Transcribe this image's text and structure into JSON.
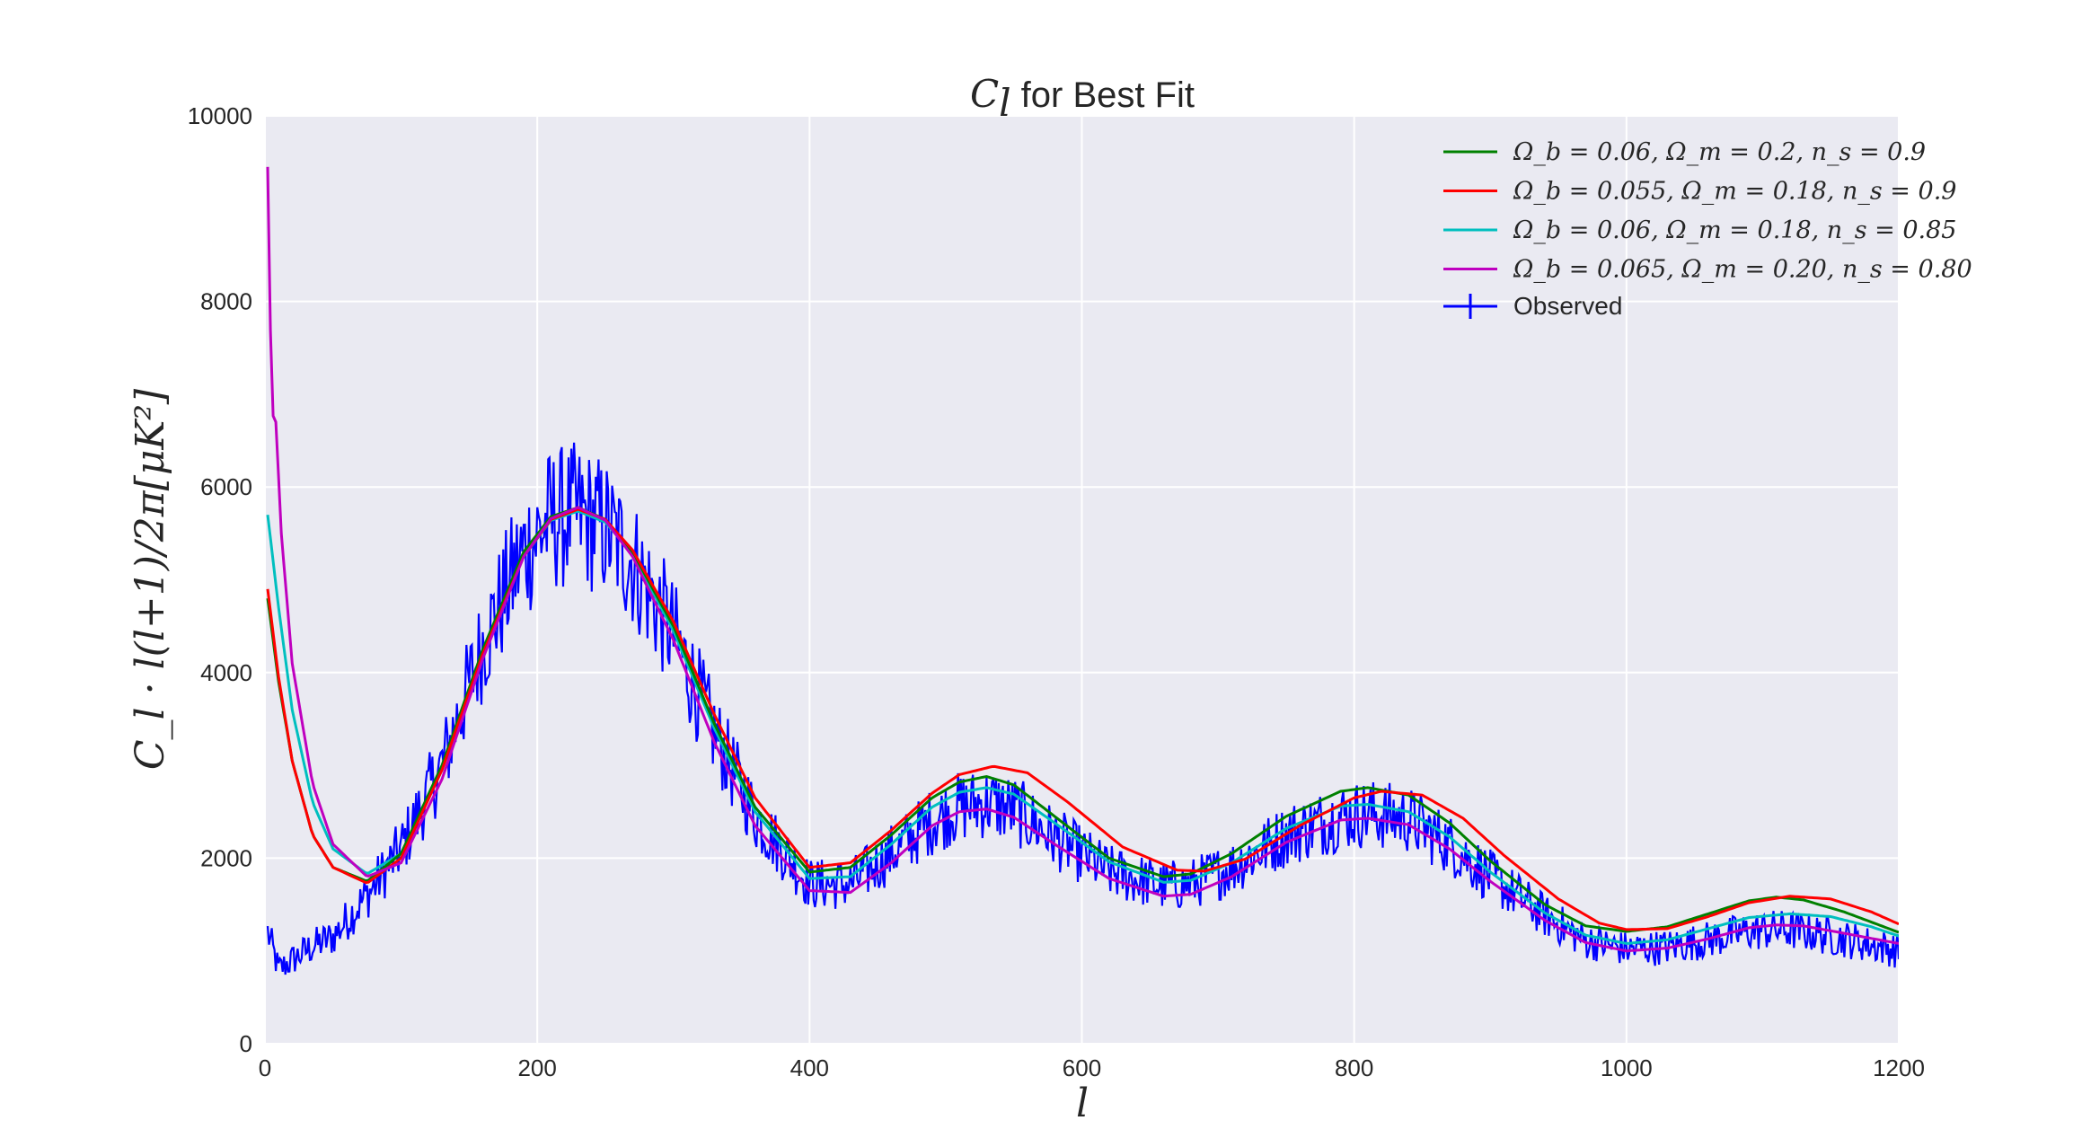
{
  "chart_data": {
    "type": "line",
    "title": {
      "symbol": "C",
      "symbol_sub": "l",
      "text": " for Best Fit"
    },
    "xlabel": "l",
    "ylabel": "C_l · l(l+1)/2π[μK²]",
    "xlim": [
      0,
      1200
    ],
    "ylim": [
      0,
      10000
    ],
    "xticks": [
      "0",
      "200",
      "400",
      "600",
      "800",
      "1000",
      "1200"
    ],
    "yticks": [
      "0",
      "2000",
      "4000",
      "6000",
      "8000",
      "10000"
    ],
    "grid": true,
    "legend_position": "top-right",
    "background": "#eaeaf2",
    "colors": {
      "green": "#008000",
      "red": "#ff0000",
      "cyan": "#00bfbf",
      "magenta": "#bf00bf",
      "blue": "#0000ff"
    },
    "series": [
      {
        "name": "Ω_b = 0.06, Ω_m = 0.2, n_s = 0.9",
        "color": "#008000",
        "x": [
          2,
          10,
          20,
          35,
          50,
          75,
          100,
          130,
          160,
          190,
          210,
          230,
          250,
          270,
          300,
          330,
          360,
          400,
          430,
          460,
          490,
          510,
          530,
          550,
          580,
          620,
          660,
          680,
          710,
          750,
          790,
          810,
          840,
          870,
          900,
          940,
          970,
          1000,
          1030,
          1060,
          1090,
          1110,
          1130,
          1160,
          1200
        ],
        "y": [
          4800,
          3900,
          3050,
          2250,
          1900,
          1750,
          2050,
          3000,
          4250,
          5300,
          5680,
          5780,
          5650,
          5300,
          4500,
          3450,
          2550,
          1850,
          1900,
          2250,
          2650,
          2820,
          2880,
          2790,
          2450,
          2000,
          1800,
          1830,
          2050,
          2450,
          2720,
          2760,
          2680,
          2380,
          1970,
          1500,
          1270,
          1210,
          1260,
          1400,
          1540,
          1580,
          1550,
          1420,
          1200
        ]
      },
      {
        "name": "Ω_b = 0.055, Ω_m = 0.18, n_s = 0.9",
        "color": "#ff0000",
        "x": [
          2,
          10,
          20,
          35,
          50,
          75,
          100,
          130,
          160,
          190,
          210,
          230,
          250,
          270,
          300,
          330,
          360,
          400,
          430,
          460,
          490,
          510,
          535,
          560,
          590,
          630,
          670,
          690,
          720,
          760,
          800,
          820,
          850,
          880,
          910,
          950,
          980,
          1000,
          1030,
          1060,
          1090,
          1120,
          1150,
          1180,
          1200
        ],
        "y": [
          4900,
          3950,
          3050,
          2250,
          1900,
          1730,
          2000,
          2950,
          4200,
          5250,
          5650,
          5760,
          5650,
          5320,
          4550,
          3550,
          2650,
          1900,
          1950,
          2300,
          2700,
          2900,
          2990,
          2920,
          2600,
          2120,
          1870,
          1860,
          1990,
          2350,
          2650,
          2720,
          2680,
          2430,
          2030,
          1560,
          1300,
          1230,
          1240,
          1370,
          1520,
          1590,
          1560,
          1420,
          1290
        ]
      },
      {
        "name": "Ω_b = 0.06, Ω_m = 0.18, n_s = 0.85",
        "color": "#00bfbf",
        "x": [
          2,
          10,
          20,
          35,
          50,
          75,
          100,
          130,
          160,
          190,
          210,
          230,
          250,
          270,
          300,
          330,
          360,
          400,
          430,
          460,
          490,
          510,
          530,
          550,
          580,
          620,
          660,
          680,
          710,
          750,
          790,
          810,
          840,
          870,
          900,
          940,
          970,
          1000,
          1030,
          1060,
          1090,
          1120,
          1150,
          1180,
          1200
        ],
        "y": [
          5700,
          4700,
          3600,
          2600,
          2100,
          1830,
          2050,
          2950,
          4200,
          5250,
          5640,
          5740,
          5620,
          5280,
          4450,
          3400,
          2500,
          1780,
          1800,
          2150,
          2550,
          2710,
          2760,
          2690,
          2380,
          1960,
          1740,
          1760,
          1950,
          2320,
          2560,
          2580,
          2500,
          2230,
          1850,
          1410,
          1170,
          1080,
          1120,
          1240,
          1360,
          1400,
          1370,
          1260,
          1160
        ]
      },
      {
        "name": "Ω_b = 0.065, Ω_m = 0.20, n_s = 0.80",
        "color": "#bf00bf",
        "x": [
          2,
          5,
          8,
          12,
          20,
          35,
          50,
          75,
          100,
          130,
          160,
          190,
          210,
          230,
          250,
          270,
          300,
          330,
          360,
          400,
          430,
          460,
          490,
          510,
          530,
          550,
          580,
          620,
          660,
          680,
          710,
          750,
          790,
          810,
          840,
          870,
          900,
          940,
          970,
          1000,
          1030,
          1060,
          1090,
          1110,
          1130,
          1160,
          1200
        ],
        "y": [
          9450,
          6800,
          6700,
          5500,
          4100,
          2800,
          2150,
          1800,
          1950,
          2850,
          4150,
          5250,
          5660,
          5780,
          5640,
          5250,
          4350,
          3250,
          2350,
          1650,
          1630,
          1950,
          2350,
          2500,
          2530,
          2440,
          2150,
          1780,
          1590,
          1610,
          1800,
          2170,
          2410,
          2430,
          2360,
          2100,
          1750,
          1330,
          1090,
          1000,
          1030,
          1130,
          1250,
          1280,
          1270,
          1190,
          1080
        ]
      }
    ],
    "observed": {
      "name": "Observed",
      "color": "#0000ff",
      "x_range": [
        2,
        1200
      ],
      "x": [
        2,
        10,
        20,
        35,
        50,
        75,
        100,
        130,
        160,
        190,
        210,
        230,
        250,
        270,
        300,
        330,
        360,
        400,
        430,
        460,
        490,
        510,
        530,
        550,
        580,
        620,
        660,
        680,
        710,
        750,
        790,
        810,
        840,
        870,
        900,
        940,
        970,
        1000,
        1030,
        1060,
        1090,
        1110,
        1130,
        1160,
        1200
      ],
      "y": [
        1200,
        800,
        900,
        1050,
        1150,
        1600,
        2100,
        3000,
        4300,
        5300,
        5650,
        5700,
        5550,
        5200,
        4400,
        3350,
        2450,
        1720,
        1720,
        2050,
        2400,
        2550,
        2600,
        2520,
        2220,
        1850,
        1700,
        1720,
        1900,
        2250,
        2450,
        2480,
        2420,
        2150,
        1800,
        1380,
        1110,
        1020,
        1040,
        1120,
        1210,
        1230,
        1210,
        1130,
        1000
      ],
      "noise_amplitude_max": 950
    }
  }
}
